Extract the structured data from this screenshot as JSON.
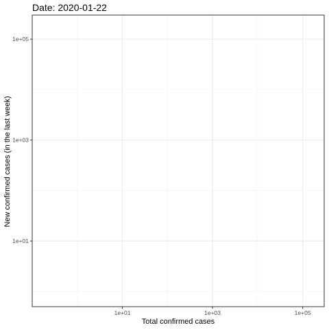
{
  "chart_data": {
    "type": "scatter",
    "title": "Date: 2020-01-22",
    "xlabel": "Total confirmed cases",
    "ylabel": "New confirmed cases (in the last week)",
    "x_scale": "log10",
    "y_scale": "log10",
    "xlim": [
      0.1,
      300000
    ],
    "ylim": [
      0.5,
      300000
    ],
    "x_ticks": [
      {
        "value": 10,
        "label": "1e+01"
      },
      {
        "value": 1000,
        "label": "1e+03"
      },
      {
        "value": 100000,
        "label": "1e+05"
      }
    ],
    "y_ticks": [
      {
        "value": 10,
        "label": "1e+01"
      },
      {
        "value": 1000,
        "label": "1e+03"
      },
      {
        "value": 100000,
        "label": "1e+05"
      }
    ],
    "x_minor_breaks": [
      1,
      100,
      10000
    ],
    "y_minor_breaks": [
      1,
      100,
      10000
    ],
    "grid": true,
    "points": []
  },
  "colors": {
    "background": "#ffffff",
    "panel_border": "#333333",
    "grid_major": "#ebebeb",
    "grid_minor": "#f4f4f4",
    "axis_text": "#4d4d4d",
    "title": "#000000"
  }
}
